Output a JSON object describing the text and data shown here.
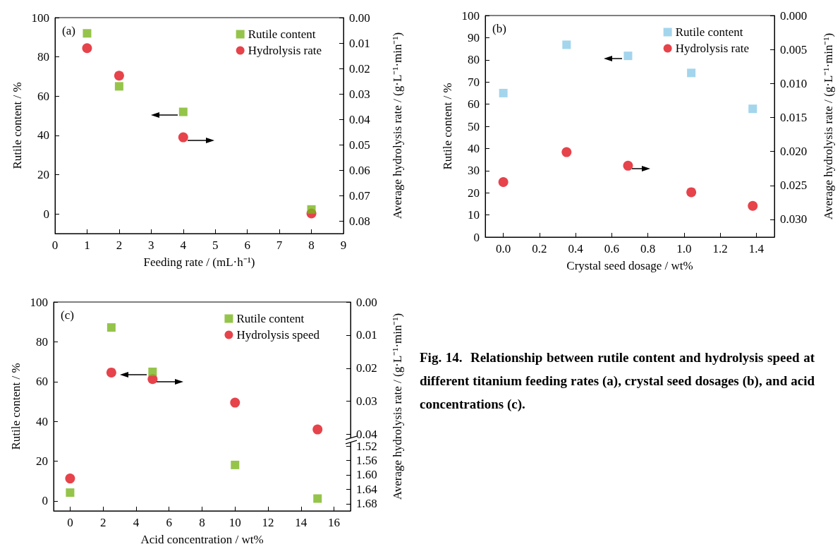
{
  "chart_data": [
    {
      "type": "scatter",
      "annotations": [
        "(a)"
      ],
      "xlabel": "Feeding rate / (mL·h⁻¹)",
      "ylabel": "Rutile content / %",
      "y2label": "Average hydrolysis rate / (g·L⁻¹·min⁻¹)",
      "legend": "top right",
      "x": [
        1,
        2,
        4,
        8
      ],
      "series": [
        {
          "name": "Rutile content",
          "color": "#7ab51d",
          "marker": "square",
          "values": [
            92,
            65,
            52,
            2.3
          ]
        },
        {
          "name": "Hydrolysis rate",
          "color": "#e0141e",
          "marker": "circle",
          "axis": "y2",
          "values": [
            0.012,
            0.0228,
            0.047,
            0.0769
          ]
        }
      ],
      "xlim": [
        0,
        9
      ],
      "xticks": [
        0,
        1,
        2,
        3,
        4,
        5,
        6,
        7,
        8,
        9
      ],
      "ylim": [
        -10,
        100
      ],
      "yticks": [
        0,
        20,
        40,
        60,
        80,
        100
      ],
      "y2lim": [
        0.0848,
        0
      ],
      "y2ticks": [
        {
          "value": 0,
          "label": "0.00"
        },
        {
          "value": 0.01,
          "label": "0.01"
        },
        {
          "value": 0.02,
          "label": "0.02"
        },
        {
          "value": 0.03,
          "label": "0.03"
        },
        {
          "value": 0.04,
          "label": "0.04"
        },
        {
          "value": 0.05,
          "label": "0.05"
        },
        {
          "value": 0.06,
          "label": "0.06"
        },
        {
          "value": 0.07,
          "label": "0.07"
        },
        {
          "value": 0.08,
          "label": "0.08"
        }
      ]
    },
    {
      "type": "scatter",
      "annotations": [
        "(b)"
      ],
      "xlabel": "Crystal seed dosage / wt%",
      "ylabel": "Rutile content / %",
      "y2label": "Average hydrolysis rate / (g·L⁻¹·min⁻¹)",
      "legend": "top right",
      "x": [
        0,
        0.35,
        0.69,
        1.04,
        1.38
      ],
      "series": [
        {
          "name": "Rutile content",
          "color": "#8ccbe8",
          "marker": "square",
          "values": [
            65,
            86.8,
            81.8,
            74.1,
            57.9
          ]
        },
        {
          "name": "Hydrolysis rate",
          "color": "#e0141e",
          "marker": "circle",
          "axis": "y2",
          "values": [
            0.0245,
            0.0201,
            0.0221,
            0.026,
            0.028
          ]
        }
      ],
      "xlim": [
        -0.1,
        1.5
      ],
      "xticks": [
        {
          "value": 0,
          "label": "0.0"
        },
        0.2,
        0.4,
        0.6,
        0.8,
        {
          "value": 1,
          "label": "1.0"
        },
        1.2,
        1.4
      ],
      "ylim": [
        0,
        100
      ],
      "yticks": [
        0,
        10,
        20,
        30,
        40,
        50,
        60,
        70,
        80,
        90,
        100
      ],
      "y2lim": [
        0.0326,
        0
      ],
      "y2ticks": [
        {
          "value": 0,
          "label": "0.000"
        },
        {
          "value": 0.005,
          "label": "0.005"
        },
        {
          "value": 0.01,
          "label": "0.010"
        },
        {
          "value": 0.015,
          "label": "0.015"
        },
        {
          "value": 0.02,
          "label": "0.020"
        },
        {
          "value": 0.025,
          "label": "0.025"
        },
        {
          "value": 0.03,
          "label": "0.030"
        }
      ]
    },
    {
      "type": "scatter",
      "annotations": [
        "(c)"
      ],
      "xlabel": "Acid concentration / wt%",
      "ylabel": "Rutile content / %",
      "y2label": "Average hydrolysis rate / (g·L⁻¹·min⁻¹)",
      "legend": "top right",
      "x": [
        0,
        2.5,
        5,
        10,
        15
      ],
      "series": [
        {
          "name": "Rutile content",
          "color": "#7ab51d",
          "marker": "square",
          "values": [
            4.2,
            87.2,
            64.9,
            18.1,
            1.2
          ]
        },
        {
          "name": "Hydrolysis speed",
          "color": "#e0141e",
          "marker": "circle",
          "axis": "y2",
          "values": [
            null,
            0.0213,
            0.0233,
            0.0304,
            0.0385
          ]
        },
        {
          "color": "#e0141e",
          "marker": "circle",
          "axis": "y3",
          "values": [
            1.61,
            null,
            null,
            null,
            null
          ]
        }
      ],
      "xlim": [
        -1,
        17
      ],
      "xticks": [
        0,
        2,
        4,
        6,
        8,
        10,
        12,
        14,
        16
      ],
      "ylim": [
        -5,
        100
      ],
      "yticks": [
        0,
        20,
        40,
        60,
        80,
        100
      ],
      "y2lim": [
        0.0631,
        0
      ],
      "y2ticks": [
        {
          "value": 0,
          "label": "0.00"
        },
        {
          "value": 0.01,
          "label": "0.01"
        },
        {
          "value": 0.02,
          "label": "0.02"
        },
        {
          "value": 0.03,
          "label": "0.03"
        },
        {
          "value": 0.04,
          "label": "0.04"
        }
      ],
      "y3lim": [
        1.7,
        1.12
      ],
      "y3ticks": [
        1.52,
        1.56,
        {
          "value": 1.6,
          "label": "1.60"
        },
        1.64,
        1.68
      ]
    },
    {
      "type": "other",
      "annotations": [
        "Fig. 14.  Relationship between rutile content and hydrolysis speed at different titanium feeding rates (a), crystal seed dosages (b), and acid concentrations (c)."
      ]
    }
  ]
}
